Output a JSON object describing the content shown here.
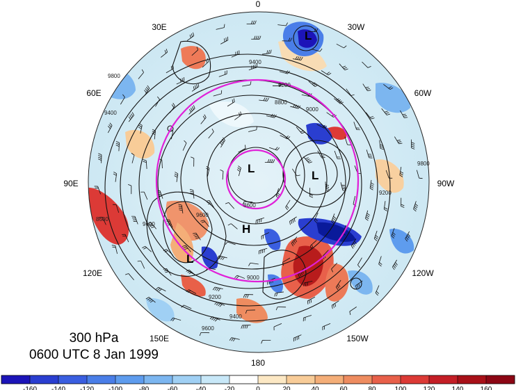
{
  "map": {
    "longitude_labels": [
      "0",
      "30W",
      "60W",
      "90W",
      "120W",
      "150W",
      "180",
      "150E",
      "120E",
      "90E",
      "60E",
      "30E"
    ],
    "pressure_centers": [
      "L",
      "L",
      "L",
      "H",
      "L"
    ],
    "contour_labels": [
      "9400",
      "9200",
      "8800",
      "9000",
      "8600",
      "9600",
      "9800",
      "9400",
      "9200",
      "9600",
      "9000",
      "9400",
      "9800",
      "9200",
      "9600",
      "8600"
    ],
    "colors": {
      "strong_negative": "#0a1a9a",
      "negative": "#4a8fe0",
      "weak_negative": "#b8e4f4",
      "weak_positive": "#f8d8a8",
      "positive": "#ee6040",
      "strong_positive": "#a81818",
      "circle": "#e020d8"
    }
  },
  "title": {
    "level": "300 hPa",
    "time": "0600 UTC 8 Jan 1999"
  },
  "colorbar": {
    "ticks": [
      "-160",
      "-140",
      "-120",
      "-100",
      "-80",
      "-60",
      "-40",
      "-20",
      "0",
      "20",
      "40",
      "60",
      "80",
      "100",
      "120",
      "140",
      "160"
    ],
    "colors": [
      "#1c14b8",
      "#2a3ed0",
      "#3a5ee0",
      "#4a7ee8",
      "#5e9cee",
      "#7cb6f0",
      "#a0d0f4",
      "#c8e8f8",
      "#ffffff",
      "#fce8c4",
      "#f8cc98",
      "#f4ae78",
      "#ee8c60",
      "#e8604a",
      "#dc3a36",
      "#c41e26",
      "#a81018",
      "#8c0614"
    ]
  }
}
